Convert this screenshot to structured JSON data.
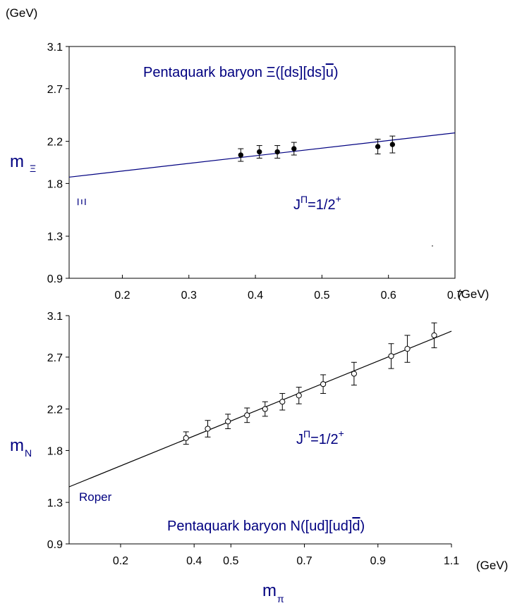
{
  "chart_data": [
    {
      "type": "scatter",
      "title": "Pentaquark baryon  Ξ([ds][ds]u)",
      "title_bar_char": "u",
      "title_prefix": "Pentaquark baryon  Ξ([ds][ds]",
      "title_suffix": ")",
      "ylabel_main": "m",
      "ylabel_sub": "Ξ",
      "yunit": "(GeV)",
      "xunit": "(GeV)",
      "annotation_jp_main": "J",
      "annotation_jp_sup1": "Π",
      "annotation_jp_mid": "=1/2",
      "annotation_jp_sup2": "+",
      "reference_label": "Ξ",
      "xlim": [
        0.12,
        0.7
      ],
      "ylim": [
        0.9,
        3.1
      ],
      "xticks": [
        0.2,
        0.3,
        0.4,
        0.5,
        0.6,
        0.7
      ],
      "xtick_labels": [
        "0.2",
        "0.3",
        "0.4",
        "0.5",
        "0.6",
        "0.7"
      ],
      "yticks": [
        0.9,
        1.3,
        1.8,
        2.2,
        2.7,
        3.1
      ],
      "ytick_labels": [
        "0.9",
        "1.3",
        "1.8",
        "2.2",
        "2.7",
        "3.1"
      ],
      "marker": "filled-circle",
      "line_color": "#000080",
      "points": [
        {
          "x": 0.378,
          "y": 2.07,
          "err": 0.06
        },
        {
          "x": 0.406,
          "y": 2.1,
          "err": 0.06
        },
        {
          "x": 0.433,
          "y": 2.1,
          "err": 0.06
        },
        {
          "x": 0.458,
          "y": 2.13,
          "err": 0.06
        },
        {
          "x": 0.584,
          "y": 2.15,
          "err": 0.07
        },
        {
          "x": 0.606,
          "y": 2.17,
          "err": 0.08
        }
      ],
      "fit_line": {
        "x": [
          0.12,
          0.7
        ],
        "y": [
          1.86,
          2.28
        ]
      }
    },
    {
      "type": "scatter",
      "title_prefix": "Pentaquark baryon  N([ud][ud]",
      "title_bar_char": "d",
      "title_suffix": ")",
      "ylabel_main": "m",
      "ylabel_sub": "N",
      "xunit": "(GeV)",
      "annotation_jp_main": "J",
      "annotation_jp_sup1": "Π",
      "annotation_jp_mid": "=1/2",
      "annotation_jp_sup2": "+",
      "reference_label": "Roper",
      "xlabel_main": "m",
      "xlabel_sub": "π",
      "xlim": [
        0.06,
        1.1
      ],
      "ylim": [
        0.9,
        3.1
      ],
      "xticks": [
        0.2,
        0.4,
        0.5,
        0.7,
        0.9,
        1.1
      ],
      "xtick_labels": [
        "0.2",
        "0.4",
        "0.5",
        "0.7",
        "0.9",
        "1.1"
      ],
      "yticks": [
        0.9,
        1.3,
        1.8,
        2.2,
        2.7,
        3.1
      ],
      "ytick_labels": [
        "0.9",
        "1.3",
        "1.8",
        "2.2",
        "2.7",
        "3.1"
      ],
      "marker": "open-circle",
      "line_color": "#000000",
      "points": [
        {
          "x": 0.378,
          "y": 1.92,
          "err": 0.06
        },
        {
          "x": 0.437,
          "y": 2.01,
          "err": 0.08
        },
        {
          "x": 0.492,
          "y": 2.08,
          "err": 0.07
        },
        {
          "x": 0.544,
          "y": 2.14,
          "err": 0.07
        },
        {
          "x": 0.593,
          "y": 2.2,
          "err": 0.07
        },
        {
          "x": 0.64,
          "y": 2.27,
          "err": 0.08
        },
        {
          "x": 0.685,
          "y": 2.33,
          "err": 0.08
        },
        {
          "x": 0.751,
          "y": 2.44,
          "err": 0.09
        },
        {
          "x": 0.835,
          "y": 2.54,
          "err": 0.11
        },
        {
          "x": 0.936,
          "y": 2.71,
          "err": 0.12
        },
        {
          "x": 0.98,
          "y": 2.78,
          "err": 0.13
        },
        {
          "x": 1.053,
          "y": 2.91,
          "err": 0.12
        }
      ],
      "fit_line": {
        "x": [
          0.06,
          1.1
        ],
        "y": [
          1.45,
          2.95
        ]
      }
    }
  ]
}
